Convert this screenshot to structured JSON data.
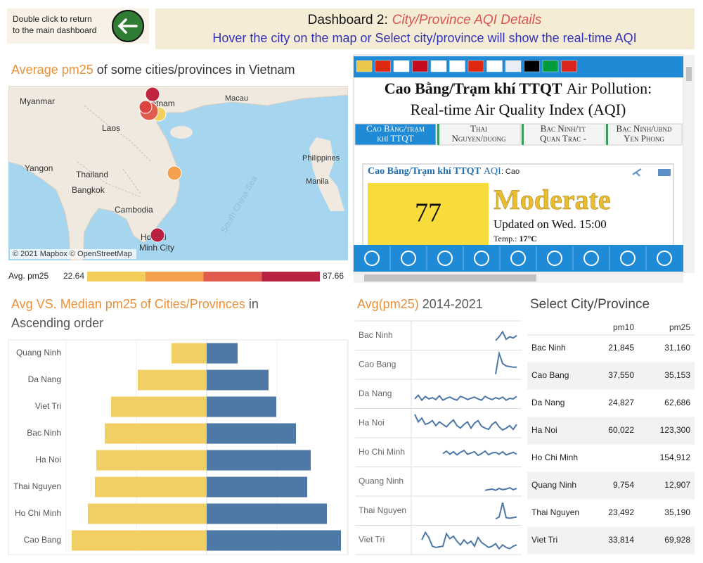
{
  "header": {
    "back_button_lines": [
      "Double click to return",
      "to the main dashboard"
    ],
    "title": "Dashboard 2:",
    "title_highlight": "City/Province AQI Details",
    "subtitle": "Hover the city on the map or Select city/province will show the real-time AQI"
  },
  "map": {
    "title_highlight": "Average pm25",
    "title_rest": "of some cities/provinces in Vietnam",
    "labels": [
      "Myanmar",
      "Vietnam",
      "Macau",
      "Laos",
      "Yangon",
      "Thailand",
      "Bangkok",
      "Cambodia",
      "Philippines",
      "Manila",
      "Ho Chi",
      "Minh City",
      "South China Sea"
    ],
    "attribution": "© 2021 Mapbox © OpenStreetMap",
    "legend": {
      "title": "Avg. pm25",
      "min": 22.64,
      "max": 87.66,
      "colors": [
        "#f2cf5b",
        "#f4a04c",
        "#e05a4e",
        "#b82240"
      ]
    }
  },
  "widget": {
    "title_bold": "Cao Bằng/Trạm khí TTQT",
    "title_rest": "Air Pollution:",
    "title_line2": "Real-time Air Quality Index (AQI)",
    "tabs": [
      [
        "Cao Bằng/trạm",
        "khí TTQT"
      ],
      [
        "Thai",
        "Nguyen/duong"
      ],
      [
        "Bac Ninh/tt",
        "Quan Trac -"
      ],
      [
        "Bac Ninh/ubnd",
        "Yen Phong"
      ]
    ],
    "card": {
      "station": "Cao Bằng/Trạm khí TTQT",
      "aqi_label": "AQI",
      "aqi_suffix": ": Cao",
      "aqi": 77,
      "level": "Moderate",
      "updated": "Updated on Wed. 15:00",
      "temp_label": "Temp.:",
      "temp": "17°C"
    }
  },
  "chart_data": [
    {
      "type": "butterfly",
      "title": "Avg VS. Median pm25 of Cities/Provinces",
      "title_rest_lines": [
        "in",
        "Ascending order"
      ],
      "categories": [
        "Quang Ninh",
        "Da Nang",
        "Viet Tri",
        "Bac Ninh",
        "Ha Noi",
        "Thai Nguyen",
        "Ho Chi Minh",
        "Cao Bang"
      ],
      "series": [
        {
          "color": "#f0cf65",
          "values": [
            25,
            49,
            68,
            72.5,
            78.5,
            79.5,
            84.5,
            96
          ]
        },
        {
          "color": "#4e79a7",
          "values": [
            22,
            44,
            49.5,
            63.5,
            74,
            71.5,
            85.5,
            95.5
          ]
        }
      ],
      "xlim": [
        0,
        100
      ]
    },
    {
      "type": "sparkline",
      "title": "Avg(pm25)",
      "title_rest": "2014-2021",
      "color": "#4e79a7",
      "ylim": [
        0,
        40
      ],
      "series": [
        {
          "name": "Bac Ninh",
          "values": [
            null,
            null,
            null,
            null,
            null,
            null,
            null,
            null,
            null,
            null,
            null,
            null,
            null,
            null,
            null,
            null,
            null,
            null,
            null,
            null,
            null,
            null,
            null,
            12,
            18,
            26,
            14,
            18,
            16,
            20
          ]
        },
        {
          "name": "Cao Bang",
          "values": [
            null,
            null,
            null,
            null,
            null,
            null,
            null,
            null,
            null,
            null,
            null,
            null,
            null,
            null,
            null,
            null,
            null,
            null,
            null,
            null,
            null,
            null,
            null,
            5,
            38,
            22,
            18,
            17,
            16,
            16
          ]
        },
        {
          "name": "Da Nang",
          "values": [
            12,
            18,
            10,
            16,
            12,
            14,
            11,
            17,
            10,
            13,
            15,
            12,
            10,
            16,
            14,
            11,
            13,
            15,
            12,
            10,
            16,
            13,
            11,
            14,
            12,
            15,
            10,
            13,
            12,
            16
          ]
        },
        {
          "name": "Ha Noi",
          "values": [
            34,
            22,
            28,
            18,
            20,
            24,
            16,
            22,
            18,
            14,
            20,
            25,
            16,
            12,
            18,
            22,
            12,
            20,
            24,
            15,
            12,
            10,
            18,
            22,
            14,
            9,
            12,
            16,
            10,
            18
          ]
        },
        {
          "name": "Ho Chi Minh",
          "values": [
            null,
            null,
            null,
            null,
            null,
            null,
            null,
            null,
            18,
            22,
            17,
            21,
            16,
            20,
            23,
            17,
            19,
            21,
            15,
            18,
            22,
            16,
            19,
            20,
            17,
            21,
            16,
            18,
            20,
            17
          ]
        },
        {
          "name": "Quang Ninh",
          "values": [
            null,
            null,
            null,
            null,
            null,
            null,
            null,
            null,
            null,
            null,
            null,
            null,
            null,
            null,
            null,
            null,
            null,
            null,
            null,
            null,
            6,
            7,
            8,
            6,
            9,
            7,
            8,
            10,
            7,
            9
          ]
        },
        {
          "name": "Thai Nguyen",
          "values": [
            null,
            null,
            null,
            null,
            null,
            null,
            null,
            null,
            null,
            null,
            null,
            null,
            null,
            null,
            null,
            null,
            null,
            null,
            null,
            null,
            null,
            null,
            null,
            7,
            10,
            33,
            9,
            8,
            9,
            10
          ]
        },
        {
          "name": "Viet Tri",
          "values": [
            null,
            null,
            20,
            32,
            24,
            10,
            8,
            9,
            10,
            30,
            22,
            26,
            18,
            12,
            20,
            14,
            18,
            10,
            24,
            16,
            12,
            8,
            10,
            14,
            6,
            12,
            8,
            6,
            10,
            12
          ]
        }
      ]
    }
  ],
  "table": {
    "title": "Select City/Province",
    "columns": [
      "pm10",
      "pm25"
    ],
    "rows": [
      [
        "Bac Ninh",
        "21,845",
        "31,160"
      ],
      [
        "Cao Bang",
        "37,550",
        "35,153"
      ],
      [
        "Da Nang",
        "24,827",
        "62,686"
      ],
      [
        "Ha Noi",
        "60,022",
        "123,300"
      ],
      [
        "Ho Chi Minh",
        null,
        "154,912"
      ],
      [
        "Quang Ninh",
        "9,754",
        "12,907"
      ],
      [
        "Thai Nguyen",
        "23,492",
        "35,190"
      ],
      [
        "Viet Tri",
        "33,814",
        "69,928"
      ]
    ]
  }
}
